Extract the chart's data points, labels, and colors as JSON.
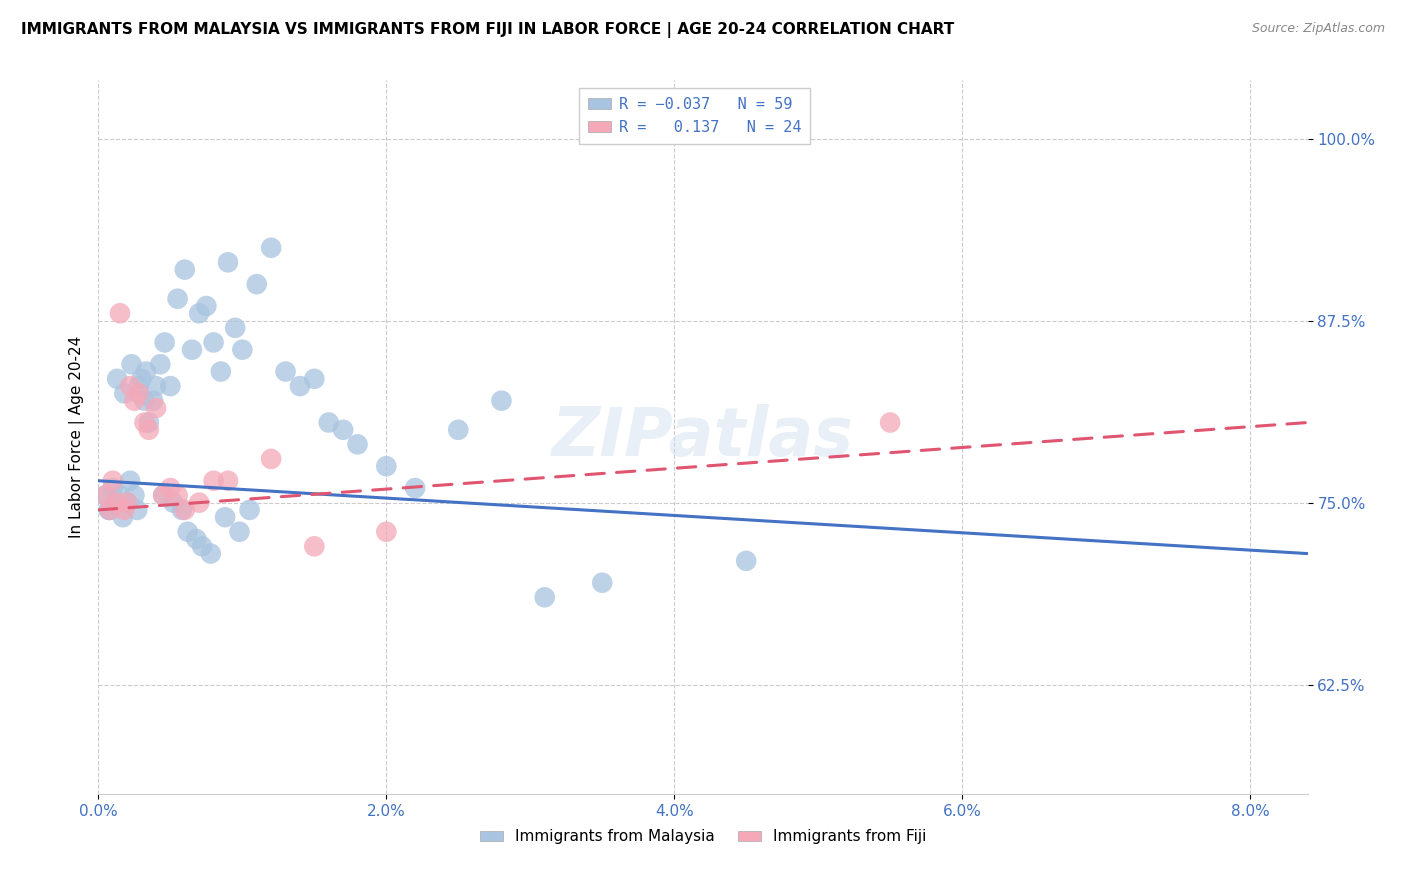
{
  "title": "IMMIGRANTS FROM MALAYSIA VS IMMIGRANTS FROM FIJI IN LABOR FORCE | AGE 20-24 CORRELATION CHART",
  "source": "Source: ZipAtlas.com",
  "xlabel_tick_vals": [
    0.0,
    2.0,
    4.0,
    6.0,
    8.0
  ],
  "ylabel_tick_vals": [
    62.5,
    75.0,
    87.5,
    100.0
  ],
  "xlim": [
    0.0,
    8.4
  ],
  "ylim": [
    55.0,
    104.0
  ],
  "malaysia_color": "#a8c4e0",
  "fiji_color": "#f4a8b8",
  "malaysia_line_color": "#4472c4",
  "fiji_line_color": "#e05570",
  "watermark": "ZIPatlas",
  "malaysia_x": [
    0.05,
    0.07,
    0.1,
    0.12,
    0.15,
    0.17,
    0.2,
    0.22,
    0.25,
    0.27,
    0.3,
    0.32,
    0.35,
    0.38,
    0.4,
    0.43,
    0.46,
    0.5,
    0.55,
    0.6,
    0.65,
    0.7,
    0.75,
    0.8,
    0.85,
    0.9,
    0.95,
    1.0,
    1.1,
    1.2,
    1.3,
    1.4,
    1.5,
    1.6,
    1.7,
    1.8,
    2.0,
    2.2,
    2.5,
    2.8,
    3.1,
    3.5,
    0.08,
    0.13,
    0.18,
    0.23,
    0.28,
    0.33,
    0.45,
    0.52,
    0.58,
    0.62,
    0.68,
    0.72,
    0.78,
    0.88,
    0.98,
    1.05,
    4.5
  ],
  "malaysia_y": [
    75.5,
    74.5,
    76.0,
    75.0,
    75.5,
    74.0,
    75.0,
    76.5,
    75.5,
    74.5,
    83.5,
    82.0,
    80.5,
    82.0,
    83.0,
    84.5,
    86.0,
    83.0,
    89.0,
    91.0,
    85.5,
    88.0,
    88.5,
    86.0,
    84.0,
    91.5,
    87.0,
    85.5,
    90.0,
    92.5,
    84.0,
    83.0,
    83.5,
    80.5,
    80.0,
    79.0,
    77.5,
    76.0,
    80.0,
    82.0,
    68.5,
    69.5,
    74.5,
    83.5,
    82.5,
    84.5,
    83.0,
    84.0,
    75.5,
    75.0,
    74.5,
    73.0,
    72.5,
    72.0,
    71.5,
    74.0,
    73.0,
    74.5,
    71.0
  ],
  "fiji_x": [
    0.05,
    0.08,
    0.1,
    0.13,
    0.15,
    0.18,
    0.2,
    0.22,
    0.25,
    0.28,
    0.32,
    0.35,
    0.4,
    0.45,
    0.5,
    0.55,
    0.6,
    0.7,
    0.8,
    0.9,
    1.2,
    1.5,
    2.0,
    5.5
  ],
  "fiji_y": [
    75.5,
    74.5,
    76.5,
    75.0,
    88.0,
    74.5,
    75.0,
    83.0,
    82.0,
    82.5,
    80.5,
    80.0,
    81.5,
    75.5,
    76.0,
    75.5,
    74.5,
    75.0,
    76.5,
    76.5,
    78.0,
    72.0,
    73.0,
    80.5
  ],
  "malaysia_trendline_x0": 0.0,
  "malaysia_trendline_y0": 76.5,
  "malaysia_trendline_x1": 8.4,
  "malaysia_trendline_y1": 71.5,
  "fiji_trendline_x0": 0.0,
  "fiji_trendline_y0": 74.5,
  "fiji_trendline_x1": 8.4,
  "fiji_trendline_y1": 80.5
}
